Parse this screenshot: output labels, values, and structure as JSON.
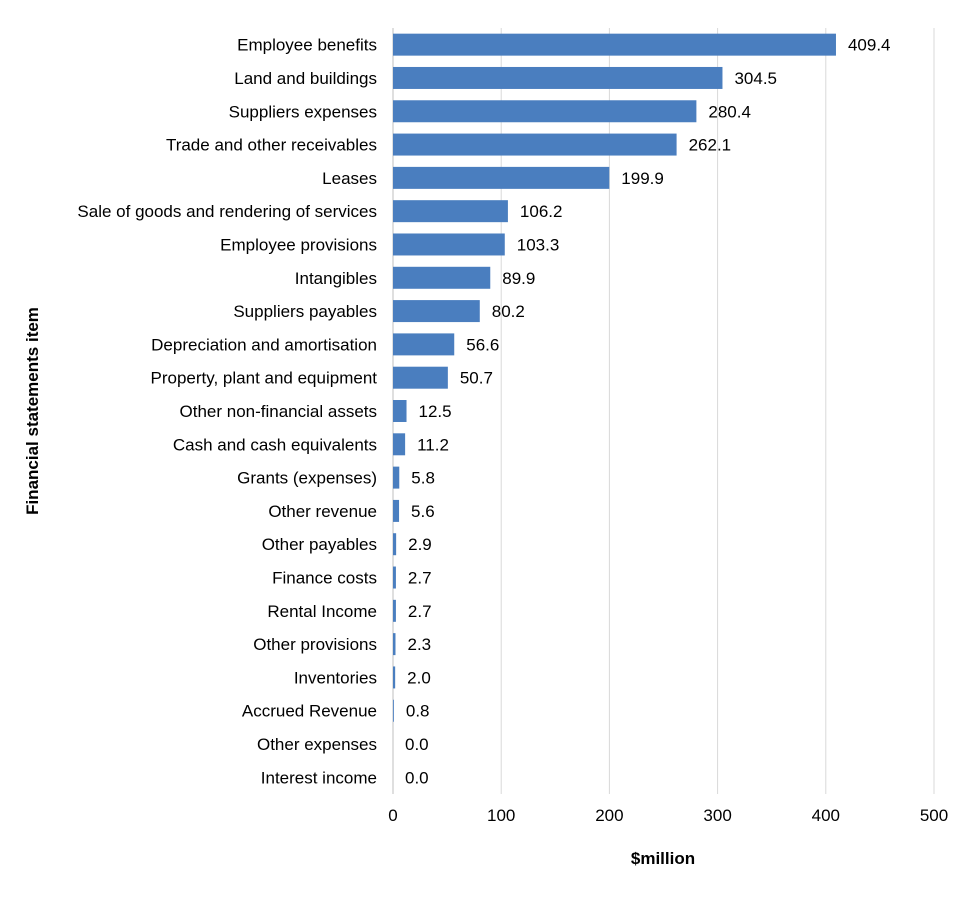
{
  "chart_data": {
    "type": "bar",
    "orientation": "horizontal",
    "title": "",
    "xlabel": "$million",
    "ylabel": "Financial statements item",
    "xlim": [
      0,
      500
    ],
    "xticks": [
      0,
      100,
      200,
      300,
      400,
      500
    ],
    "xtick_labels": [
      "0",
      "100",
      "200",
      "300",
      "400",
      "500"
    ],
    "grid": "vertical",
    "legend": "none",
    "bar_color": "#4a7ebf",
    "categories": [
      "Employee benefits",
      "Land and buildings",
      "Suppliers expenses",
      "Trade and other receivables",
      "Leases",
      "Sale of goods and rendering of services",
      "Employee provisions",
      "Intangibles",
      "Suppliers payables",
      "Depreciation and amortisation",
      "Property, plant and equipment",
      "Other non-financial assets",
      "Cash and cash equivalents",
      "Grants (expenses)",
      "Other revenue",
      "Other payables",
      "Finance costs",
      "Rental Income",
      "Other provisions",
      "Inventories",
      "Accrued Revenue",
      "Other expenses",
      "Interest income"
    ],
    "values": [
      409.4,
      304.5,
      280.4,
      262.1,
      199.9,
      106.2,
      103.3,
      89.9,
      80.2,
      56.6,
      50.7,
      12.5,
      11.2,
      5.8,
      5.6,
      2.9,
      2.7,
      2.7,
      2.3,
      2.0,
      0.8,
      0.0,
      0.0
    ],
    "value_labels": [
      "409.4",
      "304.5",
      "280.4",
      "262.1",
      "199.9",
      "106.2",
      "103.3",
      "89.9",
      "80.2",
      "56.6",
      "50.7",
      "12.5",
      "11.2",
      "5.8",
      "5.6",
      "2.9",
      "2.7",
      "2.7",
      "2.3",
      "2.0",
      "0.8",
      "0.0",
      "0.0"
    ]
  }
}
